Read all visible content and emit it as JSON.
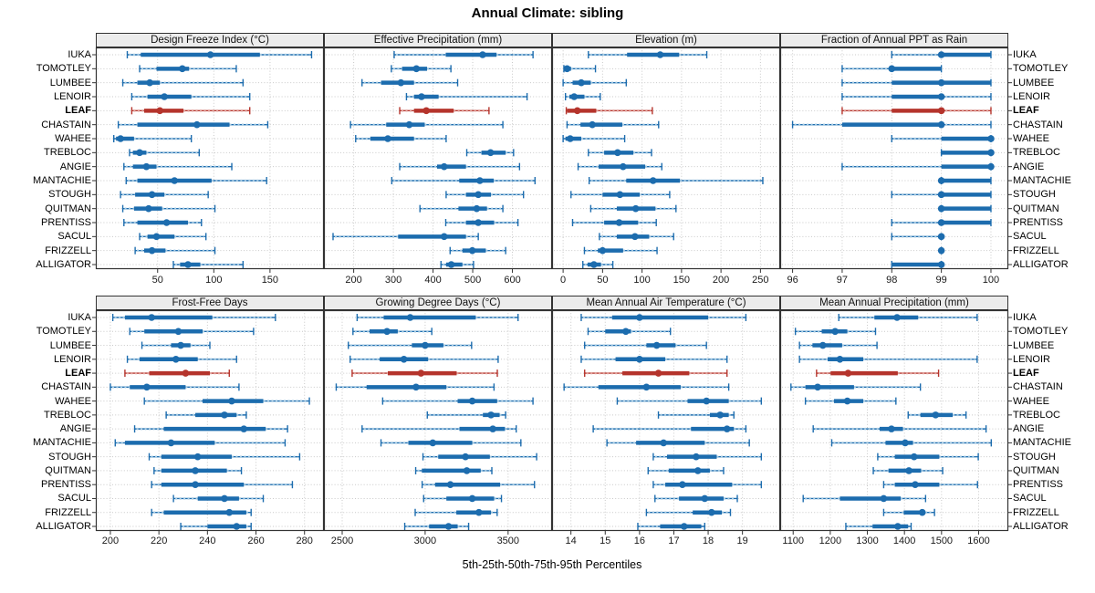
{
  "chart_data": {
    "type": "scatter",
    "subtype": "trellis-percentile-dotplot",
    "title": "Annual Climate: sibling",
    "xlabel": "5th-25th-50th-75th-95th Percentiles",
    "percentile_labels": [
      "5th",
      "25th",
      "50th",
      "75th",
      "95th"
    ],
    "legend_position": "none",
    "grid": "dotted",
    "sites": [
      "IUKA",
      "TOMOTLEY",
      "LUMBEE",
      "LENOIR",
      "LEAF",
      "CHASTAIN",
      "WAHEE",
      "TREBLOC",
      "ANGIE",
      "MANTACHIE",
      "STOUGH",
      "QUITMAN",
      "PRENTISS",
      "SACUL",
      "FRIZZELL",
      "ALLIGATOR"
    ],
    "highlight_site": "LEAF",
    "colors": {
      "blue": "#1C6CAE",
      "blue_light": "#A8CCE4",
      "red": "#B5342C",
      "red_light": "#E2A39D",
      "grid": "#C9C9C9",
      "strip_bg": "#ECECEC",
      "border": "#333333"
    },
    "panels": [
      {
        "title": "Design Freeze Index (°C)",
        "row": 0,
        "ticks": [
          50,
          100,
          150
        ],
        "xlim": [
          -5,
          198
        ],
        "values": [
          [
            23,
            35,
            97,
            141,
            187
          ],
          [
            34,
            49,
            72,
            78,
            120
          ],
          [
            19,
            32,
            43,
            52,
            126
          ],
          [
            27,
            41,
            56,
            80,
            132
          ],
          [
            27,
            38,
            52,
            73,
            132
          ],
          [
            15,
            32,
            85,
            114,
            148
          ],
          [
            11,
            13,
            17,
            29,
            80
          ],
          [
            25,
            28,
            34,
            40,
            87
          ],
          [
            20,
            28,
            40,
            49,
            116
          ],
          [
            22,
            32,
            65,
            98,
            147
          ],
          [
            17,
            30,
            45,
            56,
            95
          ],
          [
            19,
            29,
            42,
            54,
            101
          ],
          [
            20,
            32,
            58,
            77,
            89
          ],
          [
            34,
            41,
            49,
            65,
            93
          ],
          [
            30,
            38,
            45,
            57,
            101
          ],
          [
            64,
            70,
            77,
            88,
            126
          ]
        ]
      },
      {
        "title": "Effective Precipitation (mm)",
        "row": 0,
        "ticks": [
          200,
          300,
          400,
          500,
          600
        ],
        "xlim": [
          125,
          700
        ],
        "values": [
          [
            302,
            432,
            525,
            560,
            652
          ],
          [
            295,
            322,
            358,
            385,
            445
          ],
          [
            221,
            269,
            319,
            352,
            462
          ],
          [
            333,
            352,
            371,
            414,
            637
          ],
          [
            316,
            352,
            383,
            452,
            541
          ],
          [
            192,
            282,
            340,
            379,
            576
          ],
          [
            205,
            242,
            286,
            352,
            433
          ],
          [
            485,
            522,
            545,
            583,
            603
          ],
          [
            316,
            410,
            428,
            483,
            618
          ],
          [
            296,
            466,
            518,
            553,
            657
          ],
          [
            433,
            483,
            514,
            546,
            628
          ],
          [
            367,
            464,
            510,
            536,
            576
          ],
          [
            432,
            483,
            514,
            554,
            614
          ],
          [
            148,
            312,
            428,
            483,
            514
          ],
          [
            443,
            474,
            499,
            533,
            583
          ],
          [
            420,
            433,
            446,
            474,
            502
          ]
        ]
      },
      {
        "title": "Elevation (m)",
        "row": 0,
        "ticks": [
          0,
          50,
          100,
          150,
          200,
          250
        ],
        "xlim": [
          -14,
          275
        ],
        "values": [
          [
            32,
            81,
            123,
            147,
            182
          ],
          [
            1,
            2,
            5,
            10,
            41
          ],
          [
            0,
            12,
            23,
            35,
            80
          ],
          [
            3,
            8,
            14,
            27,
            47
          ],
          [
            4,
            5,
            18,
            42,
            113
          ],
          [
            5,
            22,
            37,
            75,
            121
          ],
          [
            0,
            3,
            9,
            23,
            78
          ],
          [
            32,
            52,
            69,
            89,
            112
          ],
          [
            19,
            45,
            76,
            104,
            125
          ],
          [
            33,
            80,
            114,
            148,
            253
          ],
          [
            10,
            50,
            72,
            97,
            135
          ],
          [
            35,
            68,
            92,
            117,
            143
          ],
          [
            12,
            52,
            71,
            95,
            118
          ],
          [
            46,
            68,
            91,
            109,
            140
          ],
          [
            27,
            44,
            50,
            76,
            119
          ],
          [
            25,
            31,
            39,
            48,
            63
          ]
        ]
      },
      {
        "title": "Fraction of Annual PPT as Rain",
        "row": 0,
        "ticks": [
          96,
          97,
          98,
          99,
          100
        ],
        "xlim": [
          95.75,
          100.35
        ],
        "values": [
          [
            98,
            99,
            99,
            100,
            100
          ],
          [
            97,
            98,
            98,
            99,
            99
          ],
          [
            97,
            98,
            99,
            100,
            100
          ],
          [
            97,
            98,
            99,
            99,
            100
          ],
          [
            97,
            98,
            99,
            99,
            100
          ],
          [
            96,
            97,
            99,
            99,
            100
          ],
          [
            98,
            99,
            100,
            100,
            100
          ],
          [
            99,
            99,
            100,
            100,
            100
          ],
          [
            97,
            99,
            100,
            100,
            100
          ],
          [
            99,
            99,
            99,
            100,
            100
          ],
          [
            98,
            99,
            99,
            100,
            100
          ],
          [
            99,
            99,
            99,
            100,
            100
          ],
          [
            98,
            99,
            99,
            100,
            100
          ],
          [
            98,
            99,
            99,
            99,
            99
          ],
          [
            99,
            99,
            99,
            99,
            99
          ],
          [
            98,
            98,
            99,
            99,
            99
          ]
        ]
      },
      {
        "title": "Frost-Free Days",
        "row": 1,
        "ticks": [
          200,
          220,
          240,
          260,
          280
        ],
        "xlim": [
          194,
          288
        ],
        "values": [
          [
            201,
            206,
            217,
            242,
            268
          ],
          [
            208,
            214,
            228,
            238,
            259
          ],
          [
            213,
            225,
            229,
            233,
            241
          ],
          [
            207,
            212,
            227,
            236,
            252
          ],
          [
            206,
            216,
            231,
            241,
            249
          ],
          [
            200,
            208,
            215,
            231,
            253
          ],
          [
            214,
            238,
            250,
            263,
            282
          ],
          [
            223,
            235,
            247,
            252,
            256
          ],
          [
            210,
            222,
            255,
            264,
            273
          ],
          [
            202,
            206,
            225,
            243,
            272
          ],
          [
            216,
            221,
            236,
            250,
            278
          ],
          [
            218,
            221,
            235,
            248,
            254
          ],
          [
            217,
            221,
            235,
            255,
            275
          ],
          [
            226,
            236,
            247,
            253,
            263
          ],
          [
            217,
            222,
            249,
            256,
            258
          ],
          [
            229,
            240,
            252,
            256,
            258
          ]
        ]
      },
      {
        "title": "Growing Degree Days (°C)",
        "row": 1,
        "ticks": [
          2500,
          3000,
          3500
        ],
        "xlim": [
          2390,
          3765
        ],
        "values": [
          [
            2590,
            2750,
            2910,
            3305,
            3560
          ],
          [
            2565,
            2665,
            2770,
            2835,
            3040
          ],
          [
            2537,
            2920,
            3000,
            3110,
            3280
          ],
          [
            2548,
            2726,
            2872,
            3018,
            3440
          ],
          [
            2560,
            2775,
            2975,
            3190,
            3435
          ],
          [
            2464,
            2647,
            2945,
            3128,
            3415
          ],
          [
            2744,
            3196,
            3284,
            3434,
            3650
          ],
          [
            3013,
            3348,
            3397,
            3449,
            3485
          ],
          [
            2620,
            3207,
            3408,
            3481,
            3549
          ],
          [
            2734,
            2899,
            3046,
            3284,
            3577
          ],
          [
            2987,
            3079,
            3243,
            3390,
            3672
          ],
          [
            2943,
            2980,
            3251,
            3335,
            3402
          ],
          [
            2982,
            3060,
            3152,
            3452,
            3659
          ],
          [
            2991,
            3128,
            3284,
            3416,
            3460
          ],
          [
            2940,
            3188,
            3324,
            3397,
            3434
          ],
          [
            2877,
            3024,
            3141,
            3196,
            3262
          ]
        ]
      },
      {
        "title": "Mean Annual Air Temperature (°C)",
        "row": 1,
        "ticks": [
          14,
          15,
          16,
          17,
          18,
          19
        ],
        "xlim": [
          13.45,
          20.1
        ],
        "values": [
          [
            14.3,
            15.2,
            16.0,
            18.0,
            19.1
          ],
          [
            14.5,
            15.0,
            15.6,
            15.75,
            16.9
          ],
          [
            14.4,
            16.2,
            16.5,
            17.05,
            17.95
          ],
          [
            14.3,
            15.3,
            16.0,
            16.75,
            18.55
          ],
          [
            14.4,
            15.5,
            16.55,
            17.45,
            18.55
          ],
          [
            13.8,
            14.8,
            16.2,
            17.2,
            18.6
          ],
          [
            15.35,
            17.4,
            17.95,
            18.6,
            19.55
          ],
          [
            16.55,
            18.05,
            18.35,
            18.6,
            18.75
          ],
          [
            14.65,
            17.5,
            18.55,
            18.75,
            19.1
          ],
          [
            15.05,
            15.9,
            16.7,
            17.9,
            19.2
          ],
          [
            16.4,
            16.8,
            17.65,
            18.25,
            19.55
          ],
          [
            16.25,
            16.85,
            17.7,
            18.05,
            18.45
          ],
          [
            16.4,
            16.75,
            17.25,
            18.7,
            19.55
          ],
          [
            16.45,
            17.15,
            17.9,
            18.45,
            18.85
          ],
          [
            16.2,
            17.55,
            18.1,
            18.4,
            18.65
          ],
          [
            15.95,
            16.6,
            17.3,
            17.8,
            17.9
          ]
        ]
      },
      {
        "title": "Mean Annual Precipitation (mm)",
        "row": 1,
        "ticks": [
          1100,
          1200,
          1300,
          1400,
          1500,
          1600
        ],
        "xlim": [
          1065,
          1680
        ],
        "values": [
          [
            1223,
            1319,
            1380,
            1437,
            1596
          ],
          [
            1106,
            1177,
            1213,
            1246,
            1322
          ],
          [
            1117,
            1152,
            1180,
            1232,
            1326
          ],
          [
            1117,
            1193,
            1226,
            1289,
            1596
          ],
          [
            1163,
            1201,
            1248,
            1382,
            1492
          ],
          [
            1094,
            1133,
            1166,
            1264,
            1443
          ],
          [
            1133,
            1210,
            1246,
            1289,
            1377
          ],
          [
            1410,
            1443,
            1484,
            1530,
            1566
          ],
          [
            1154,
            1333,
            1365,
            1396,
            1620
          ],
          [
            1204,
            1349,
            1402,
            1423,
            1634
          ],
          [
            1328,
            1374,
            1426,
            1494,
            1599
          ],
          [
            1316,
            1357,
            1412,
            1445,
            1503
          ],
          [
            1344,
            1374,
            1429,
            1494,
            1597
          ],
          [
            1127,
            1226,
            1344,
            1390,
            1457
          ],
          [
            1344,
            1398,
            1448,
            1456,
            1481
          ],
          [
            1242,
            1314,
            1382,
            1410,
            1418
          ]
        ]
      }
    ]
  }
}
